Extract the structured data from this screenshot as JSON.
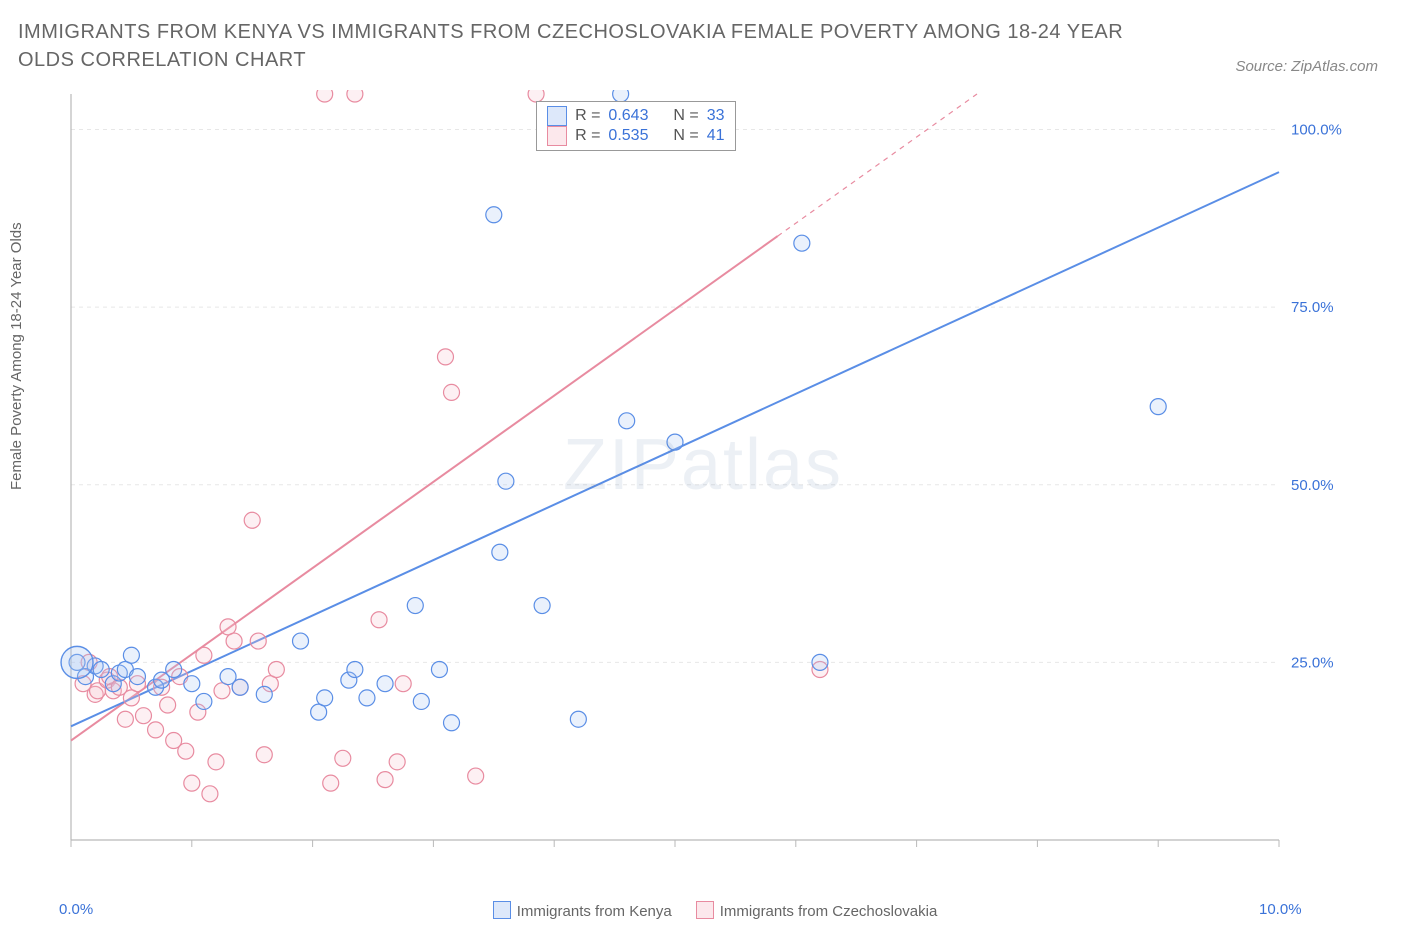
{
  "title": "IMMIGRANTS FROM KENYA VS IMMIGRANTS FROM CZECHOSLOVAKIA FEMALE POVERTY AMONG 18-24 YEAR OLDS CORRELATION CHART",
  "source": "Source: ZipAtlas.com",
  "y_axis_label": "Female Poverty Among 18-24 Year Olds",
  "watermark": "ZIPatlas",
  "chart": {
    "type": "scatter",
    "background_color": "#ffffff",
    "grid_color": "#e7e7e7",
    "axis_color": "#b9b9b9",
    "xlim": [
      0,
      10
    ],
    "ylim": [
      0,
      105
    ],
    "xtick_positions": [
      0,
      1,
      2,
      3,
      4,
      5,
      6,
      7,
      8,
      9,
      10
    ],
    "xtick_labels": {
      "0": "0.0%",
      "10": "10.0%"
    },
    "xtick_label_color": "#3a72d8",
    "ytick_positions": [
      25,
      50,
      75,
      100
    ],
    "ytick_labels": [
      "25.0%",
      "50.0%",
      "75.0%",
      "100.0%"
    ],
    "ytick_label_color": "#3a72d8",
    "marker_radius": 8,
    "marker_stroke_width": 1.2,
    "marker_fill_opacity": 0.25,
    "trend_line_width": 2,
    "series": [
      {
        "name": "Immigrants from Kenya",
        "color": "#5a8ee6",
        "fill": "#aac6f2",
        "R": "0.643",
        "N": "33",
        "points": [
          [
            0.05,
            25
          ],
          [
            0.12,
            23
          ],
          [
            0.2,
            24.5
          ],
          [
            0.25,
            24
          ],
          [
            0.35,
            22
          ],
          [
            0.4,
            23.5
          ],
          [
            0.45,
            24
          ],
          [
            0.5,
            26
          ],
          [
            0.55,
            23
          ],
          [
            0.7,
            21.5
          ],
          [
            0.75,
            22.5
          ],
          [
            0.85,
            24
          ],
          [
            1.0,
            22
          ],
          [
            1.1,
            19.5
          ],
          [
            1.3,
            23
          ],
          [
            1.4,
            21.5
          ],
          [
            1.6,
            20.5
          ],
          [
            1.9,
            28
          ],
          [
            2.05,
            18
          ],
          [
            2.1,
            20
          ],
          [
            2.3,
            22.5
          ],
          [
            2.35,
            24
          ],
          [
            2.45,
            20
          ],
          [
            2.85,
            33
          ],
          [
            2.6,
            22
          ],
          [
            2.9,
            19.5
          ],
          [
            3.05,
            24
          ],
          [
            3.15,
            16.5
          ],
          [
            3.5,
            88
          ],
          [
            3.55,
            40.5
          ],
          [
            3.6,
            50.5
          ],
          [
            3.9,
            33
          ],
          [
            4.2,
            17
          ],
          [
            4.55,
            105
          ],
          [
            4.6,
            59
          ],
          [
            5.0,
            56
          ],
          [
            6.05,
            84
          ],
          [
            6.2,
            25
          ],
          [
            9.0,
            61
          ]
        ],
        "big_point": [
          0.05,
          25,
          16
        ],
        "trend": {
          "x1": 0,
          "y1": 16,
          "x2": 10,
          "y2": 94
        }
      },
      {
        "name": "Immigrants from Czechoslovakia",
        "color": "#e88ba0",
        "fill": "#f7c5d0",
        "R": "0.535",
        "N": "41",
        "points": [
          [
            0.1,
            22
          ],
          [
            0.15,
            25
          ],
          [
            0.2,
            20.5
          ],
          [
            0.22,
            21
          ],
          [
            0.3,
            22.5
          ],
          [
            0.32,
            23
          ],
          [
            0.35,
            21
          ],
          [
            0.4,
            21.5
          ],
          [
            0.45,
            17
          ],
          [
            0.5,
            20
          ],
          [
            0.55,
            22
          ],
          [
            0.6,
            17.5
          ],
          [
            0.7,
            15.5
          ],
          [
            0.75,
            21.5
          ],
          [
            0.8,
            19
          ],
          [
            0.85,
            14
          ],
          [
            0.9,
            23
          ],
          [
            0.95,
            12.5
          ],
          [
            1.0,
            8
          ],
          [
            1.05,
            18
          ],
          [
            1.1,
            26
          ],
          [
            1.15,
            6.5
          ],
          [
            1.2,
            11
          ],
          [
            1.25,
            21
          ],
          [
            1.3,
            30
          ],
          [
            1.35,
            28
          ],
          [
            1.4,
            21.5
          ],
          [
            1.5,
            45
          ],
          [
            1.55,
            28
          ],
          [
            1.6,
            12
          ],
          [
            1.65,
            22
          ],
          [
            1.7,
            24
          ],
          [
            2.1,
            105
          ],
          [
            2.15,
            8
          ],
          [
            2.25,
            11.5
          ],
          [
            2.35,
            105
          ],
          [
            2.55,
            31
          ],
          [
            2.6,
            8.5
          ],
          [
            2.7,
            11
          ],
          [
            2.75,
            22
          ],
          [
            3.1,
            68
          ],
          [
            3.15,
            63
          ],
          [
            3.35,
            9
          ],
          [
            3.85,
            105
          ],
          [
            6.2,
            24
          ]
        ],
        "trend_solid": {
          "x1": 0,
          "y1": 14,
          "x2": 5.85,
          "y2": 85
        },
        "trend_dashed": {
          "x1": 5.85,
          "y1": 85,
          "x2": 7.5,
          "y2": 105
        }
      }
    ]
  },
  "legend": {
    "series_a_label": "Immigrants from Kenya",
    "series_b_label": "Immigrants from Czechoslovakia"
  },
  "r_legend": {
    "rows": [
      {
        "R_label": "R =",
        "R": "0.643",
        "N_label": "N =",
        "N": "33",
        "color": "#5a8ee6",
        "fill": "#aac6f2"
      },
      {
        "R_label": "R =",
        "R": "0.535",
        "N_label": "N =",
        "N": "41",
        "color": "#e88ba0",
        "fill": "#f7c5d0"
      }
    ]
  }
}
